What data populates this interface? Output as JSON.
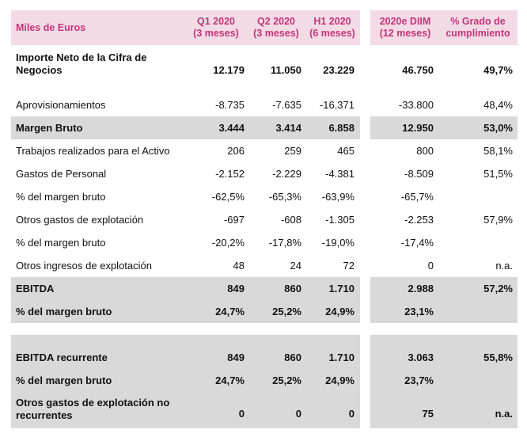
{
  "header": {
    "label": "Miles de Euros",
    "col1": "Q1 2020\n(3 meses)",
    "col2": "Q2 2020\n(3 meses)",
    "col3": "H1 2020\n(6 meses)",
    "col4": "2020e DIIM\n(12 meses)",
    "col5": "% Grado de\ncumplimiento"
  },
  "rows": [
    {
      "label": "Importe Neto de la Cifra de Negocios",
      "q1": "12.179",
      "q2": "11.050",
      "h1": "23.229",
      "e2020": "46.750",
      "grado": "49,7%"
    },
    {
      "label": "Aprovisionamientos",
      "q1": "-8.735",
      "q2": "-7.635",
      "h1": "-16.371",
      "e2020": "-33.800",
      "grado": "48,4%"
    },
    {
      "label": "Margen Bruto",
      "q1": "3.444",
      "q2": "3.414",
      "h1": "6.858",
      "e2020": "12.950",
      "grado": "53,0%"
    },
    {
      "label": "Trabajos realizados para el Activo",
      "q1": "206",
      "q2": "259",
      "h1": "465",
      "e2020": "800",
      "grado": "58,1%"
    },
    {
      "label": "Gastos de Personal",
      "q1": "-2.152",
      "q2": "-2.229",
      "h1": "-4.381",
      "e2020": "-8.509",
      "grado": "51,5%"
    },
    {
      "label": "% del margen bruto",
      "q1": "-62,5%",
      "q2": "-65,3%",
      "h1": "-63,9%",
      "e2020": "-65,7%",
      "grado": ""
    },
    {
      "label": "Otros gastos de explotación",
      "q1": "-697",
      "q2": "-608",
      "h1": "-1.305",
      "e2020": "-2.253",
      "grado": "57,9%"
    },
    {
      "label": "% del margen bruto",
      "q1": "-20,2%",
      "q2": "-17,8%",
      "h1": "-19,0%",
      "e2020": "-17,4%",
      "grado": ""
    },
    {
      "label": "Otros ingresos de explotación",
      "q1": "48",
      "q2": "24",
      "h1": "72",
      "e2020": "0",
      "grado": "n.a."
    },
    {
      "label": "EBITDA",
      "q1": "849",
      "q2": "860",
      "h1": "1.710",
      "e2020": "2.988",
      "grado": "57,2%"
    },
    {
      "label": "% del margen bruto",
      "q1": "24,7%",
      "q2": "25,2%",
      "h1": "24,9%",
      "e2020": "23,1%",
      "grado": ""
    },
    {
      "label": "EBITDA recurrente",
      "q1": "849",
      "q2": "860",
      "h1": "1.710",
      "e2020": "3.063",
      "grado": "55,8%"
    },
    {
      "label": "% del margen bruto",
      "q1": "24,7%",
      "q2": "25,2%",
      "h1": "24,9%",
      "e2020": "23,7%",
      "grado": ""
    },
    {
      "label": "Otros gastos de explotación no recurrentes",
      "q1": "0",
      "q2": "0",
      "h1": "0",
      "e2020": "75",
      "grado": "n.a."
    }
  ]
}
